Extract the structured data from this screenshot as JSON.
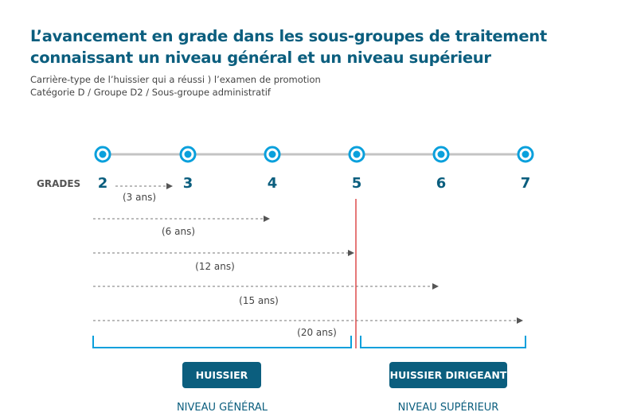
{
  "title": "L’avancement en grade dans les sous-groupes de traitement connaissant un niveau général et un niveau supérieur",
  "subtitle_line1": "Carrière-type de l’huissier qui a réussi ) l’examen de promotion",
  "subtitle_line2": "Catégorie D / Groupe D2 / Sous-groupe administratif",
  "grades_label": "GRADES",
  "grades": [
    "2",
    "3",
    "4",
    "5",
    "6",
    "7"
  ],
  "durations": [
    {
      "label": "(3 ans)",
      "from": "2",
      "to": "3"
    },
    {
      "label": "(6 ans)",
      "from": "2",
      "to": "4"
    },
    {
      "label": "(12 ans)",
      "from": "2",
      "to": "5"
    },
    {
      "label": "(15 ans)",
      "from": "2",
      "to": "6"
    },
    {
      "label": "(20 ans)",
      "from": "2",
      "to": "7"
    }
  ],
  "groups": [
    {
      "button": "HUISSIER",
      "level": "NIVEAU GÉNÉRAL"
    },
    {
      "button": "HUISSIER DIRIGEANT",
      "level": "NIVEAU SUPÉRIEUR"
    }
  ],
  "colors": {
    "primary": "#0b5e7e",
    "accent": "#0aa0dc",
    "divider": "#d42020",
    "line": "#c4c4c4"
  }
}
